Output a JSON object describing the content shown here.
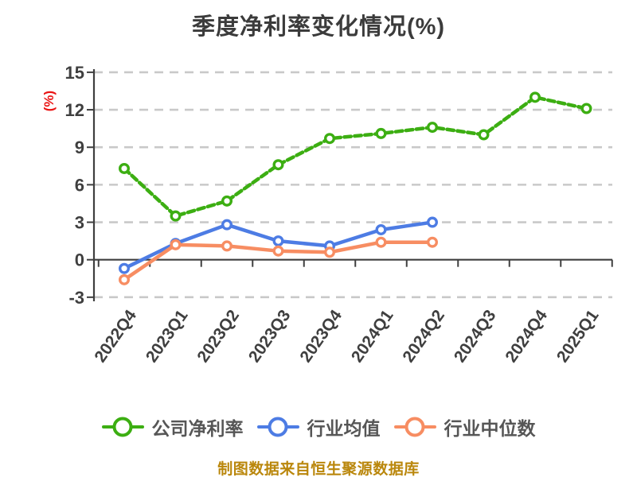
{
  "title": "季度净利率变化情况(%)",
  "y_axis_unit": "(%)",
  "footer_note": "制图数据来自恒生聚源数据库",
  "colors": {
    "title_text": "#3b3b3b",
    "axis_text": "#3f3f3f",
    "axis_line": "#3f3f3f",
    "gridline": "#c9c9c9",
    "y_unit_label": "#ea1515",
    "legend_text": "#565656",
    "footer_text": "#ba870c",
    "background": "#ffffff"
  },
  "chart_data": {
    "type": "line",
    "title": "季度净利率变化情况(%)",
    "ylabel": "(%)",
    "xlabel": "",
    "categories": [
      "2022Q4",
      "2023Q1",
      "2023Q2",
      "2023Q3",
      "2023Q4",
      "2024Q1",
      "2024Q2",
      "2024Q3",
      "2024Q4",
      "2025Q1"
    ],
    "series": [
      {
        "name": "公司净利率",
        "color": "#3cae12",
        "line_style": "dashed",
        "marker": "circle-white-fill",
        "values": [
          7.3,
          3.5,
          4.7,
          7.6,
          9.7,
          10.1,
          10.6,
          10.0,
          13.0,
          12.1
        ]
      },
      {
        "name": "行业均值",
        "color": "#4d7ce4",
        "line_style": "solid",
        "marker": "circle-white-fill",
        "values": [
          -0.7,
          1.3,
          2.8,
          1.5,
          1.1,
          2.4,
          3.0
        ]
      },
      {
        "name": "行业中位数",
        "color": "#f78d62",
        "line_style": "solid",
        "marker": "circle-white-fill",
        "values": [
          -1.6,
          1.2,
          1.1,
          0.7,
          0.6,
          1.4,
          1.4
        ]
      }
    ],
    "y_ticks": [
      15,
      12,
      9,
      6,
      3,
      0,
      -3
    ],
    "ylim": [
      -3,
      15
    ],
    "grid": "horizontal-dashed",
    "x_axis_position": "at-zero",
    "legend_position": "bottom",
    "source_note": "制图数据来自恒生聚源数据库"
  }
}
